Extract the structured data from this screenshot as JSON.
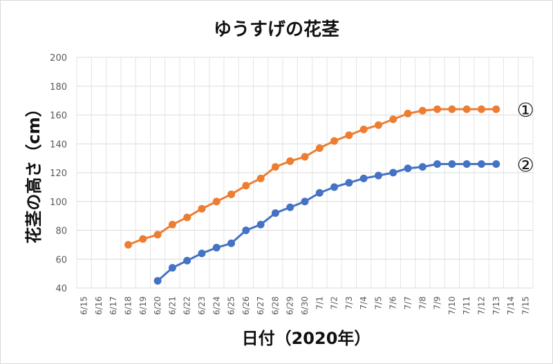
{
  "chart_data": {
    "type": "line",
    "title": "ゆうすげの花茎",
    "xlabel": "日付（2020年）",
    "ylabel": "花茎の高さ（cm）",
    "ylim": [
      40,
      200
    ],
    "yticks": [
      40,
      60,
      80,
      100,
      120,
      140,
      160,
      180,
      200
    ],
    "grid": true,
    "legend": "none",
    "categories": [
      "6/15",
      "6/16",
      "6/17",
      "6/18",
      "6/19",
      "6/20",
      "6/21",
      "6/22",
      "6/23",
      "6/24",
      "6/25",
      "6/26",
      "6/27",
      "6/28",
      "6/29",
      "6/30",
      "7/1",
      "7/2",
      "7/3",
      "7/4",
      "7/5",
      "7/6",
      "7/7",
      "7/8",
      "7/9",
      "7/10",
      "7/11",
      "7/12",
      "7/13",
      "7/14",
      "7/15"
    ],
    "series": [
      {
        "label": "①",
        "color": "#ED7D31",
        "values": [
          null,
          null,
          null,
          70,
          74,
          77,
          84,
          89,
          95,
          100,
          105,
          111,
          116,
          124,
          128,
          131,
          137,
          142,
          146,
          150,
          153,
          157,
          161,
          163,
          164,
          164,
          164,
          164,
          164,
          null,
          null
        ]
      },
      {
        "label": "②",
        "color": "#4472C4",
        "values": [
          null,
          null,
          null,
          null,
          null,
          45,
          54,
          59,
          64,
          68,
          71,
          80,
          84,
          92,
          96,
          100,
          106,
          110,
          113,
          116,
          118,
          120,
          123,
          124,
          126,
          126,
          126,
          126,
          126,
          null,
          null
        ]
      }
    ]
  }
}
